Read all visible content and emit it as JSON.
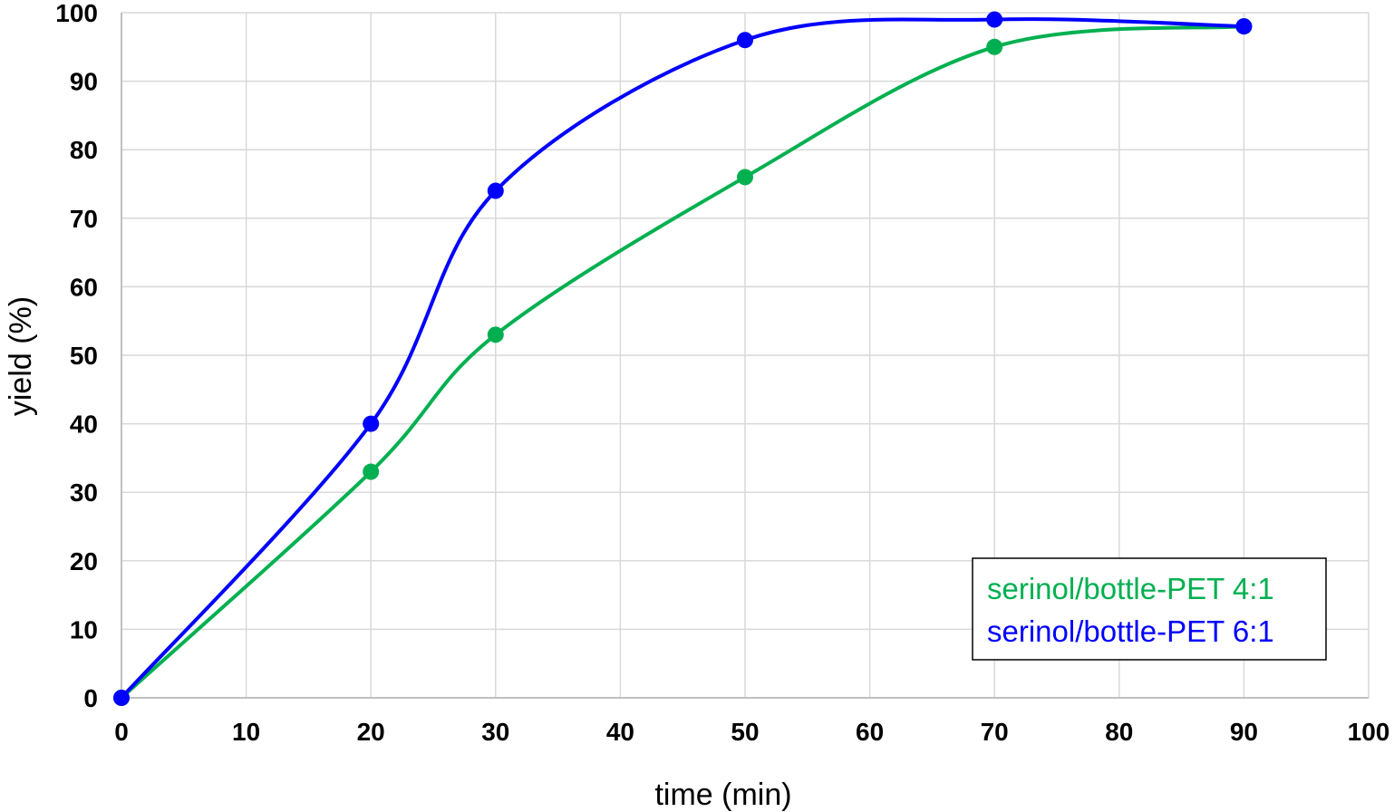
{
  "chart_data": {
    "type": "line",
    "title": "",
    "xlabel": "time (min)",
    "ylabel": "yield (%)",
    "xlim": [
      0,
      100
    ],
    "ylim": [
      0,
      100
    ],
    "x_ticks": [
      0,
      10,
      20,
      30,
      40,
      50,
      60,
      70,
      80,
      90,
      100
    ],
    "y_ticks": [
      0,
      10,
      20,
      30,
      40,
      50,
      60,
      70,
      80,
      90,
      100
    ],
    "grid": true,
    "smooth": true,
    "legend_position": "bottom-right",
    "series": [
      {
        "name": "serinol/bottle-PET 4:1",
        "color": "#00b050",
        "x": [
          0,
          20,
          30,
          50,
          70,
          90
        ],
        "y": [
          0,
          33,
          53,
          76,
          95,
          98
        ]
      },
      {
        "name": "serinol/bottle-PET 6:1",
        "color": "#0000ff",
        "x": [
          0,
          20,
          30,
          50,
          70,
          90
        ],
        "y": [
          0,
          40,
          74,
          96,
          99,
          98
        ]
      }
    ]
  }
}
